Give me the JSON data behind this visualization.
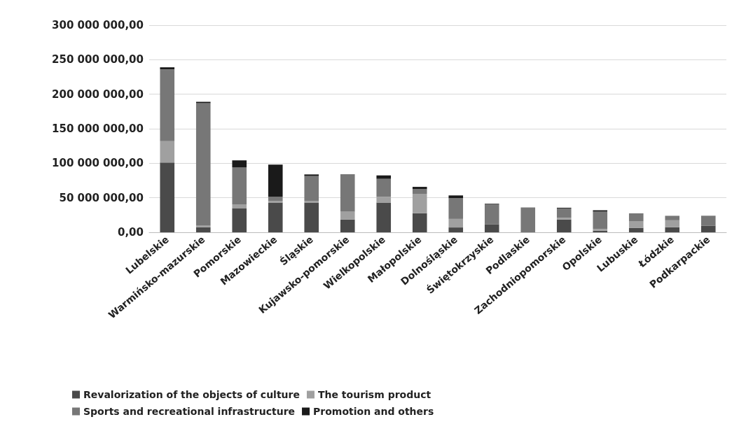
{
  "chart_data": {
    "type": "bar",
    "stacked": true,
    "categories": [
      "Lubelskie",
      "Warmińsko-mazurskie",
      "Pomorskie",
      "Mazowieckie",
      "Śląskie",
      "Kujawsko-pomorskie",
      "Wielkopolskie",
      "Małopolskie",
      "Dolnośląskie",
      "Świętokrzyskie",
      "Podlaskie",
      "Zachodniopomorskie",
      "Opolskie",
      "Lubuskie",
      "Łódzkie",
      "Podkarpackie"
    ],
    "series": [
      {
        "name": "Revalorization of the objects of culture",
        "color": "#4a4a4a",
        "values": [
          101000000,
          7400000,
          35000000,
          43000000,
          43000000,
          18400000,
          43000000,
          27700000,
          7000000,
          11300000,
          0,
          18400000,
          2300000,
          6500000,
          7400000,
          9700000
        ]
      },
      {
        "name": "The tourism product",
        "color": "#a0a0a0",
        "values": [
          31000000,
          2600000,
          5600000,
          2500000,
          2500000,
          11600000,
          8400000,
          28000000,
          12400000,
          0,
          0,
          2600000,
          2600000,
          9700000,
          10000000,
          0
        ]
      },
      {
        "name": "Sports and recreational infrastructure",
        "color": "#777777",
        "values": [
          104000000,
          177000000,
          53600000,
          6000000,
          36000000,
          54000000,
          26000000,
          6800000,
          30000000,
          29000000,
          36000000,
          13600000,
          25000000,
          11300000,
          6500000,
          14300000
        ]
      },
      {
        "name": "Promotion and others",
        "color": "#1a1a1a",
        "values": [
          3000000,
          2000000,
          10000000,
          46500000,
          2300000,
          0,
          5000000,
          3300000,
          4000000,
          1000000,
          0,
          1000000,
          2000000,
          0,
          0,
          0
        ]
      }
    ],
    "ylim": [
      0,
      300000000
    ],
    "yticks": [
      {
        "value": 0,
        "label": "0,00"
      },
      {
        "value": 50000000,
        "label": "50 000 000,00"
      },
      {
        "value": 100000000,
        "label": "100 000 000,00"
      },
      {
        "value": 150000000,
        "label": "150 000 000,00"
      },
      {
        "value": 200000000,
        "label": "200 000 000,00"
      },
      {
        "value": 250000000,
        "label": "250 000 000,00"
      },
      {
        "value": 300000000,
        "label": "300 000 000,00"
      }
    ],
    "grid": "y",
    "legend": "bottom"
  }
}
